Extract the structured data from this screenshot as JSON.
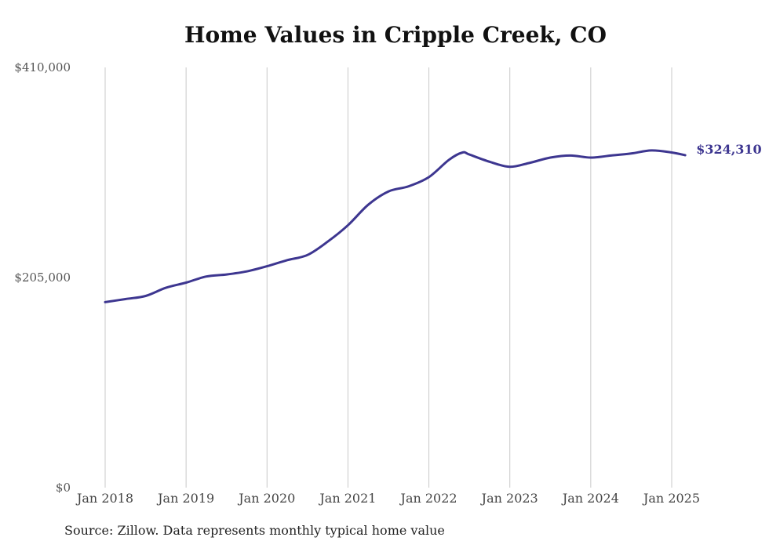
{
  "title": "Home Values in Cripple Creek, CO",
  "source_note": "Source: Zillow. Data represents monthly typical home value",
  "colors": {
    "line": "#3d3690",
    "grid": "#c8c8c8",
    "end_label": "#3d3690"
  },
  "chart_data": {
    "type": "line",
    "title": "Home Values in Cripple Creek, CO",
    "xlabel": "",
    "ylabel": "",
    "ylim": [
      0,
      410000
    ],
    "xlim": [
      "2018-01",
      "2025-03"
    ],
    "y_ticks": [
      0,
      205000,
      410000
    ],
    "y_tick_labels": [
      "$0",
      "$205,000",
      "$410,000"
    ],
    "x_ticks": [
      "2018-01",
      "2019-01",
      "2020-01",
      "2021-01",
      "2022-01",
      "2023-01",
      "2024-01",
      "2025-01"
    ],
    "x_tick_labels": [
      "Jan 2018",
      "Jan 2019",
      "Jan 2020",
      "Jan 2021",
      "Jan 2022",
      "Jan 2023",
      "Jan 2024",
      "Jan 2025"
    ],
    "grid": {
      "vertical": true,
      "horizontal": false
    },
    "legend": "none",
    "end_label": "$324,310",
    "series": [
      {
        "values": [
          [
            "2018-01",
            181000
          ],
          [
            "2018-04",
            184000
          ],
          [
            "2018-07",
            187000
          ],
          [
            "2018-10",
            195000
          ],
          [
            "2019-01",
            200000
          ],
          [
            "2019-04",
            206000
          ],
          [
            "2019-07",
            208000
          ],
          [
            "2019-10",
            211000
          ],
          [
            "2020-01",
            216000
          ],
          [
            "2020-04",
            222000
          ],
          [
            "2020-07",
            227000
          ],
          [
            "2020-10",
            240000
          ],
          [
            "2021-01",
            256000
          ],
          [
            "2021-04",
            276000
          ],
          [
            "2021-07",
            289000
          ],
          [
            "2021-10",
            294000
          ],
          [
            "2022-01",
            303000
          ],
          [
            "2022-04",
            320000
          ],
          [
            "2022-06",
            327000
          ],
          [
            "2022-07",
            325000
          ],
          [
            "2022-10",
            318000
          ],
          [
            "2023-01",
            313000
          ],
          [
            "2023-04",
            317000
          ],
          [
            "2023-07",
            322000
          ],
          [
            "2023-10",
            324000
          ],
          [
            "2024-01",
            322000
          ],
          [
            "2024-04",
            324000
          ],
          [
            "2024-07",
            326000
          ],
          [
            "2024-10",
            329000
          ],
          [
            "2025-01",
            327000
          ],
          [
            "2025-03",
            324310
          ]
        ]
      }
    ]
  }
}
